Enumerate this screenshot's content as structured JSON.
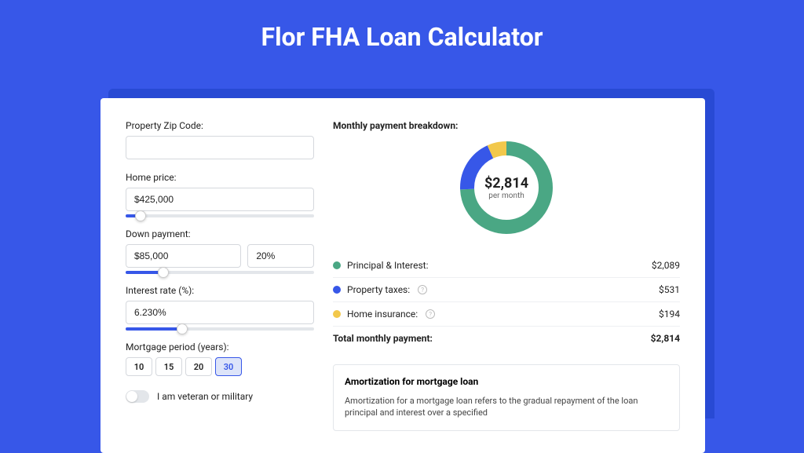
{
  "page": {
    "title": "Flor FHA Loan Calculator",
    "background_color": "#3757e8",
    "card_shadow_color": "#284ad4",
    "card_background": "#ffffff"
  },
  "form": {
    "zip": {
      "label": "Property Zip Code:",
      "value": ""
    },
    "home_price": {
      "label": "Home price:",
      "value": "$425,000",
      "slider_pct": 8
    },
    "down_payment": {
      "label": "Down payment:",
      "value": "$85,000",
      "pct": "20%",
      "slider_pct": 20
    },
    "interest_rate": {
      "label": "Interest rate (%):",
      "value": "6.230%",
      "slider_pct": 30
    },
    "mortgage_period": {
      "label": "Mortgage period (years):",
      "options": [
        "10",
        "15",
        "20",
        "30"
      ],
      "active": "30"
    },
    "veteran": {
      "label": "I am veteran or military",
      "on": false
    }
  },
  "breakdown": {
    "title": "Monthly payment breakdown:",
    "donut": {
      "value": "$2,814",
      "sub": "per month",
      "slices": [
        {
          "label": "Principal & Interest:",
          "amount": "$2,089",
          "value": 2089,
          "color": "#4aa784"
        },
        {
          "label": "Property taxes:",
          "amount": "$531",
          "value": 531,
          "color": "#3757e8",
          "info": true
        },
        {
          "label": "Home insurance:",
          "amount": "$194",
          "value": 194,
          "color": "#f2c84b",
          "info": true
        }
      ],
      "stroke_width": 18,
      "radius": 50
    },
    "total": {
      "label": "Total monthly payment:",
      "amount": "$2,814"
    }
  },
  "amortization": {
    "title": "Amortization for mortgage loan",
    "text": "Amortization for a mortgage loan refers to the gradual repayment of the loan principal and interest over a specified"
  }
}
